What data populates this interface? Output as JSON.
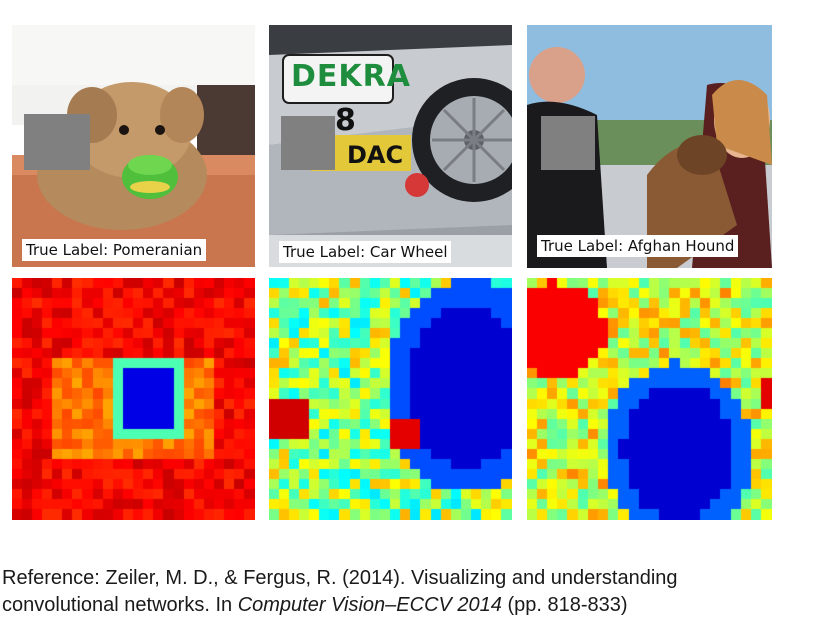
{
  "panels": [
    {
      "label": "True Label: Pomeranian"
    },
    {
      "label": "True Label: Car Wheel"
    },
    {
      "label": "True Label: Afghan Hound"
    }
  ],
  "car": {
    "brand": "DEKRA",
    "number": "8",
    "sponsor": "DAC"
  },
  "caption": {
    "line1": "Reference: Zeiler, M. D., & Fergus, R. (2014). Visualizing and understanding",
    "line2_pre": "convolutional networks. In ",
    "line2_italic": "Computer Vision–ECCV 2014",
    "line2_post": " (pp. 818-833)"
  }
}
